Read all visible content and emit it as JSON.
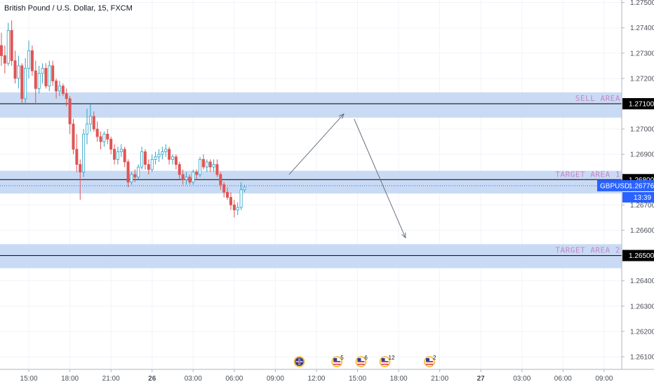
{
  "header": {
    "symbol_title": "British Pound / U.S. Dollar, 15, FXCM"
  },
  "colors": {
    "bull": "#2ea3c7",
    "bear": "#e05555",
    "zone": "#bfd5f2",
    "zone_label": "#c785c8",
    "price_tag_bg": "#2962ff",
    "grid": "#f0f3fa",
    "axis_text": "#4a4e5a",
    "line": "#000000"
  },
  "chart_data": {
    "type": "candlestick",
    "symbol": "GBPUSD",
    "timeframe": "15",
    "ylim": [
      1.2605,
      1.2751
    ],
    "y_ticks": [
      1.275,
      1.274,
      1.273,
      1.272,
      1.271,
      1.27,
      1.269,
      1.268,
      1.267,
      1.266,
      1.265,
      1.264,
      1.263,
      1.262,
      1.261
    ],
    "y_tick_labels": [
      "1.27500",
      "1.27400",
      "1.27300",
      "1.27200",
      "1.27100",
      "1.27000",
      "1.26900",
      "1.26800",
      "1.26700",
      "1.26600",
      "1.26500",
      "1.26400",
      "1.26300",
      "1.26200",
      "1.26100"
    ],
    "x_tick_labels": [
      "15:00",
      "18:00",
      "21:00",
      "26",
      "03:00",
      "06:00",
      "09:00",
      "12:00",
      "15:00",
      "18:00",
      "21:00",
      "27",
      "03:00",
      "06:00",
      "09:00"
    ],
    "x_tick_bar_index": [
      8,
      20,
      32,
      44,
      56,
      68,
      80,
      92,
      104,
      116,
      128,
      140,
      152,
      164,
      176
    ],
    "candles": [
      [
        1.2733,
        1.2738,
        1.2725,
        1.2729
      ],
      [
        1.2729,
        1.2733,
        1.2722,
        1.2726
      ],
      [
        1.2726,
        1.2742,
        1.2725,
        1.2739
      ],
      [
        1.2739,
        1.2743,
        1.2725,
        1.2727
      ],
      [
        1.2727,
        1.2731,
        1.2718,
        1.272
      ],
      [
        1.272,
        1.2729,
        1.2716,
        1.2725
      ],
      [
        1.2725,
        1.2726,
        1.271,
        1.2712
      ],
      [
        1.2712,
        1.2728,
        1.271,
        1.2724
      ],
      [
        1.2724,
        1.2735,
        1.272,
        1.2731
      ],
      [
        1.2731,
        1.2733,
        1.2721,
        1.2723
      ],
      [
        1.2723,
        1.2727,
        1.271,
        1.2716
      ],
      [
        1.2716,
        1.2725,
        1.2714,
        1.2722
      ],
      [
        1.2722,
        1.2726,
        1.2718,
        1.2724
      ],
      [
        1.2724,
        1.2726,
        1.2716,
        1.2717
      ],
      [
        1.2717,
        1.2727,
        1.2715,
        1.2725
      ],
      [
        1.2725,
        1.2727,
        1.2717,
        1.2719
      ],
      [
        1.2719,
        1.272,
        1.2712,
        1.2715
      ],
      [
        1.2715,
        1.2719,
        1.2713,
        1.2717
      ],
      [
        1.2717,
        1.2718,
        1.2713,
        1.2714
      ],
      [
        1.2714,
        1.2716,
        1.2709,
        1.2712
      ],
      [
        1.2712,
        1.2713,
        1.2698,
        1.2702
      ],
      [
        1.2702,
        1.2704,
        1.269,
        1.2692
      ],
      [
        1.2692,
        1.2698,
        1.2683,
        1.2686
      ],
      [
        1.2686,
        1.2688,
        1.2672,
        1.2683
      ],
      [
        1.2683,
        1.27,
        1.2681,
        1.2698
      ],
      [
        1.2698,
        1.2708,
        1.2694,
        1.2702
      ],
      [
        1.2702,
        1.271,
        1.2699,
        1.2705
      ],
      [
        1.2705,
        1.2707,
        1.2699,
        1.27
      ],
      [
        1.27,
        1.2703,
        1.2695,
        1.2697
      ],
      [
        1.2697,
        1.2699,
        1.2692,
        1.2695
      ],
      [
        1.2695,
        1.2699,
        1.2693,
        1.2698
      ],
      [
        1.2698,
        1.27,
        1.2694,
        1.2696
      ],
      [
        1.2696,
        1.2697,
        1.269,
        1.2692
      ],
      [
        1.2692,
        1.2694,
        1.2686,
        1.2688
      ],
      [
        1.2688,
        1.2693,
        1.2686,
        1.2691
      ],
      [
        1.2691,
        1.2694,
        1.2689,
        1.2692
      ],
      [
        1.2692,
        1.2693,
        1.2685,
        1.2687
      ],
      [
        1.2687,
        1.2688,
        1.2677,
        1.2679
      ],
      [
        1.2679,
        1.2683,
        1.2678,
        1.2682
      ],
      [
        1.2682,
        1.2684,
        1.2679,
        1.2681
      ],
      [
        1.2681,
        1.2686,
        1.268,
        1.2685
      ],
      [
        1.2685,
        1.2693,
        1.2684,
        1.2691
      ],
      [
        1.2691,
        1.2692,
        1.2684,
        1.2686
      ],
      [
        1.2686,
        1.2688,
        1.2682,
        1.2684
      ],
      [
        1.2684,
        1.269,
        1.2683,
        1.2688
      ],
      [
        1.2688,
        1.2691,
        1.2686,
        1.2689
      ],
      [
        1.2689,
        1.2692,
        1.2687,
        1.269
      ],
      [
        1.269,
        1.2693,
        1.2688,
        1.2691
      ],
      [
        1.2691,
        1.2694,
        1.2689,
        1.2692
      ],
      [
        1.2692,
        1.2693,
        1.2686,
        1.2688
      ],
      [
        1.2688,
        1.269,
        1.2686,
        1.2689
      ],
      [
        1.2689,
        1.269,
        1.2684,
        1.2686
      ],
      [
        1.2686,
        1.2687,
        1.268,
        1.2682
      ],
      [
        1.2682,
        1.2684,
        1.2678,
        1.268
      ],
      [
        1.268,
        1.2683,
        1.2678,
        1.2681
      ],
      [
        1.2681,
        1.2682,
        1.2678,
        1.2679
      ],
      [
        1.2679,
        1.2684,
        1.2678,
        1.2683
      ],
      [
        1.2683,
        1.2684,
        1.268,
        1.2682
      ],
      [
        1.2682,
        1.2689,
        1.2681,
        1.2688
      ],
      [
        1.2688,
        1.269,
        1.2684,
        1.2685
      ],
      [
        1.2685,
        1.2688,
        1.2683,
        1.2687
      ],
      [
        1.2687,
        1.2688,
        1.2683,
        1.2685
      ],
      [
        1.2685,
        1.2688,
        1.2683,
        1.2686
      ],
      [
        1.2686,
        1.2688,
        1.2681,
        1.2682
      ],
      [
        1.2682,
        1.2683,
        1.2676,
        1.2678
      ],
      [
        1.2678,
        1.2679,
        1.2673,
        1.2675
      ],
      [
        1.2675,
        1.2677,
        1.2672,
        1.2673
      ],
      [
        1.2673,
        1.2675,
        1.2668,
        1.267
      ],
      [
        1.267,
        1.2672,
        1.2665,
        1.2668
      ],
      [
        1.2668,
        1.2671,
        1.2666,
        1.2669
      ],
      [
        1.2669,
        1.2679,
        1.2668,
        1.2676
      ],
      [
        1.2676,
        1.2678,
        1.2675,
        1.2677
      ]
    ]
  },
  "zones": [
    {
      "label": "SELL AREA",
      "top": 1.27145,
      "bottom": 1.27045
    },
    {
      "label": "TARGET AREA 1",
      "top": 1.26835,
      "bottom": 1.26745
    },
    {
      "label": "TARGET AREA 2",
      "top": 1.26545,
      "bottom": 1.2645
    }
  ],
  "levels": [
    {
      "price": 1.271,
      "label": "1.27100"
    },
    {
      "price": 1.268,
      "label": "1.26800"
    },
    {
      "price": 1.265,
      "label": "1.26500"
    }
  ],
  "current_price": {
    "symbol": "GBPUSD",
    "price": 1.26776,
    "label": "1.26776",
    "countdown": "13:39"
  },
  "projection_arrows": [
    {
      "from": [
        84,
        1.2682
      ],
      "to": [
        100,
        1.2706
      ]
    },
    {
      "from": [
        103,
        1.2704
      ],
      "to": [
        118,
        1.2657
      ]
    }
  ],
  "events": [
    {
      "icon": "uk-flag-icon",
      "bar": 87,
      "count": ""
    },
    {
      "icon": "us-flag-icon",
      "bar": 98,
      "count": "5"
    },
    {
      "icon": "us-flag-icon",
      "bar": 105,
      "count": "6"
    },
    {
      "icon": "us-flag-icon",
      "bar": 112,
      "count": "12"
    },
    {
      "icon": "us-flag-icon",
      "bar": 125,
      "count": "2"
    }
  ]
}
